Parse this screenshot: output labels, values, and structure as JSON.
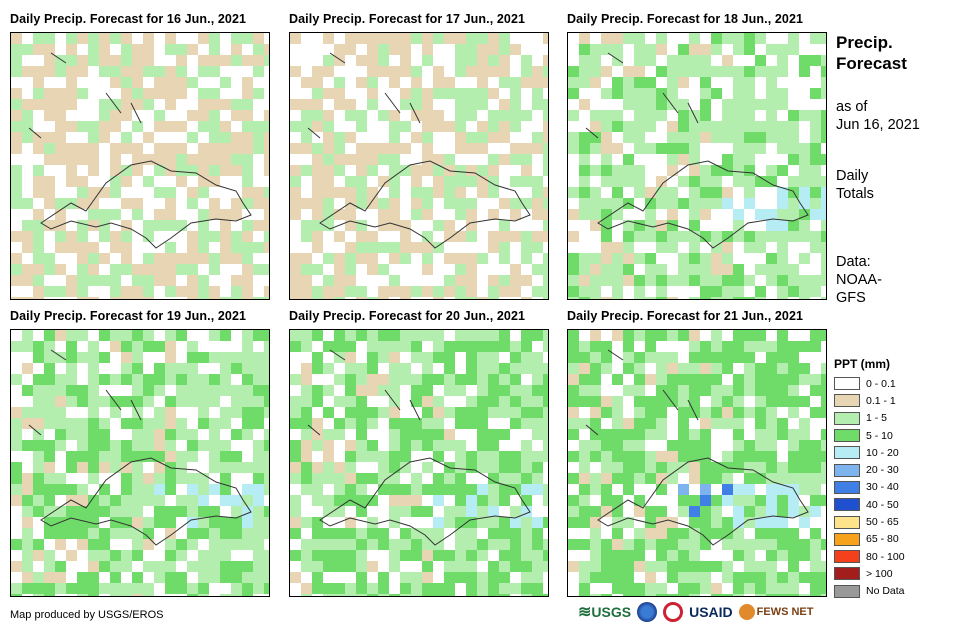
{
  "panels": [
    {
      "title": "Daily Precip. Forecast for 16 Jun., 2021"
    },
    {
      "title": "Daily Precip. Forecast for 17 Jun., 2021"
    },
    {
      "title": "Daily Precip. Forecast for 18 Jun., 2021"
    },
    {
      "title": "Daily Precip. Forecast for 19 Jun., 2021"
    },
    {
      "title": "Daily Precip. Forecast for 20 Jun., 2021"
    },
    {
      "title": "Daily Precip. Forecast for 21 Jun., 2021"
    }
  ],
  "side": {
    "title_line1": "Precip.",
    "title_line2": "Forecast",
    "asof_line1": "as of",
    "asof_line2": "Jun 16, 2021",
    "totals_line1": "Daily",
    "totals_line2": "Totals",
    "data_line1": "Data:",
    "data_line2": "NOAA-",
    "data_line3": "GFS"
  },
  "legend": {
    "title": "PPT (mm)",
    "items": [
      {
        "label": "0 - 0.1",
        "color": "#ffffff"
      },
      {
        "label": "0.1 - 1",
        "color": "#e8d5b3"
      },
      {
        "label": "1 - 5",
        "color": "#b4eeae"
      },
      {
        "label": "5 - 10",
        "color": "#6fdc6a"
      },
      {
        "label": "10 - 20",
        "color": "#b6ecf4"
      },
      {
        "label": "20 - 30",
        "color": "#7db4ee"
      },
      {
        "label": "30 - 40",
        "color": "#3f7fe6"
      },
      {
        "label": "40 - 50",
        "color": "#1e50d0"
      },
      {
        "label": "50 - 65",
        "color": "#fde48c"
      },
      {
        "label": "65 - 80",
        "color": "#f7a21b"
      },
      {
        "label": "80 - 100",
        "color": "#f4411c"
      },
      {
        "label": "> 100",
        "color": "#a31d1d"
      },
      {
        "label": "No Data",
        "color": "#999999"
      }
    ]
  },
  "footer": {
    "credit": "Map produced by USGS/EROS",
    "logo_usgs": "USGS",
    "logo_usaid": "USAID",
    "logo_fews": "FEWS NET"
  }
}
